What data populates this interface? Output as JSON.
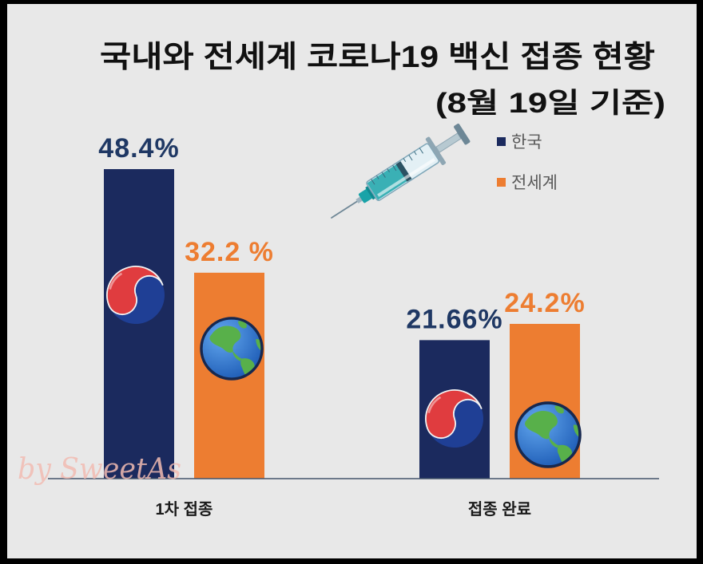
{
  "colors": {
    "frame": "#000000",
    "background": "#e8e8e8",
    "legend_text": "#595959",
    "axis_line": "#44546a",
    "watermark": "#f2bcb2"
  },
  "watermark": "by SweetAs",
  "decoration_icon": "syringe-icon",
  "chart_data": {
    "type": "bar",
    "title": "국내와 전세계 코로나19 백신 접종 현황",
    "subtitle": "(8월 19일 기준)",
    "categories": [
      "1차 접종",
      "접종 완료"
    ],
    "series": [
      {
        "name": "한국",
        "values": [
          48.4,
          21.66
        ],
        "labels": [
          "48.4%",
          "21.66%"
        ],
        "color": "#1b2a5e",
        "label_color": "#1f3864",
        "icon": "taegeuk-icon"
      },
      {
        "name": "전세계",
        "values": [
          32.2,
          24.2
        ],
        "labels": [
          "32.2 %",
          "24.2%"
        ],
        "color": "#ed7d31",
        "label_color": "#ed7d31",
        "icon": "earth-icon"
      }
    ],
    "xlabel": "",
    "ylabel": "",
    "ylim": [
      0,
      60
    ],
    "grid": false,
    "legend": "top-right"
  }
}
